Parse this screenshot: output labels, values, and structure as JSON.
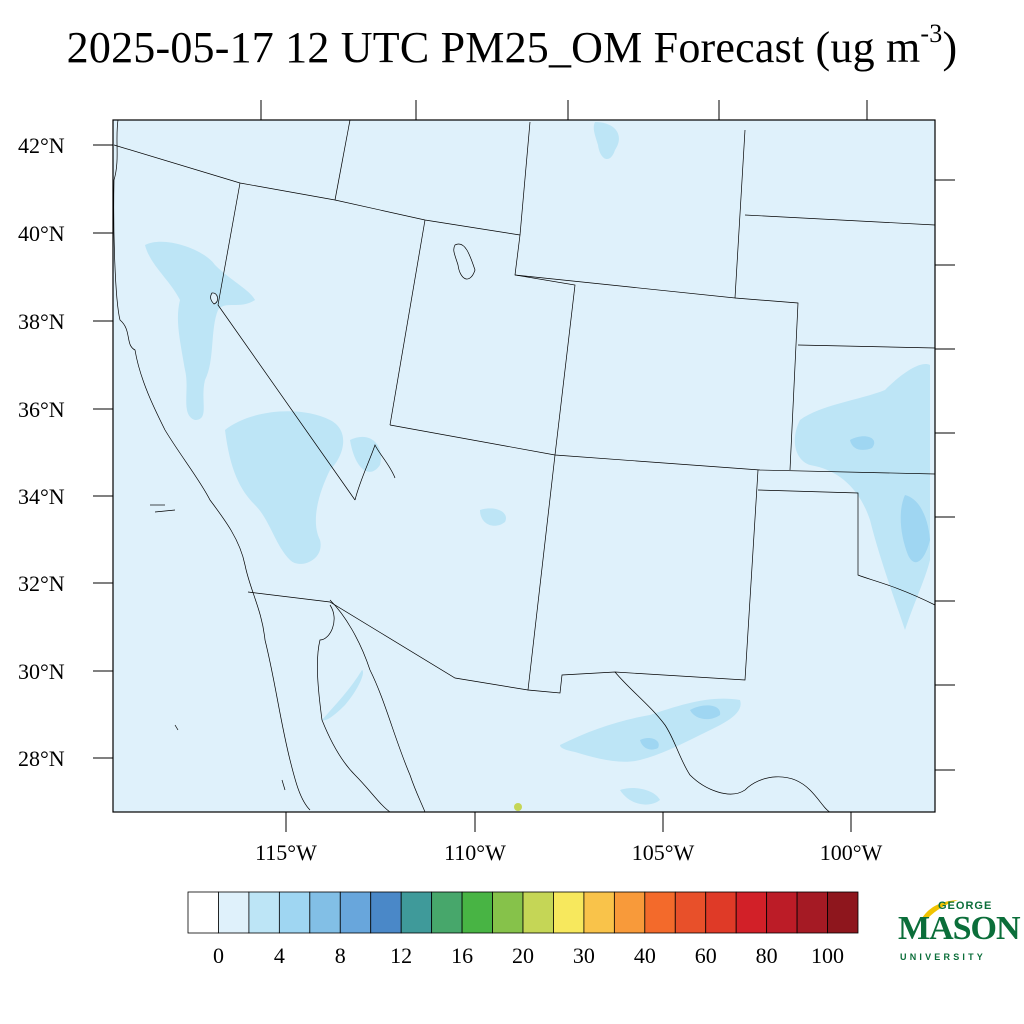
{
  "title": {
    "main": "2025-05-17 12 UTC PM25_OM Forecast (ug m",
    "superscript": "-3",
    "close": ")"
  },
  "map": {
    "lat_labels": [
      "42°N",
      "40°N",
      "38°N",
      "36°N",
      "34°N",
      "32°N",
      "30°N",
      "28°N"
    ],
    "lon_labels": [
      "115°W",
      "110°W",
      "105°W",
      "100°W"
    ],
    "background_color": "#dff1fb"
  },
  "colorbar": {
    "labels": [
      "0",
      "4",
      "8",
      "12",
      "16",
      "20",
      "30",
      "40",
      "60",
      "80",
      "100"
    ],
    "colors": [
      "#ffffff",
      "#dff1fb",
      "#bde5f6",
      "#9fd6f2",
      "#82bfe6",
      "#68a6dc",
      "#4a88c8",
      "#3f9a9a",
      "#47a76b",
      "#48b444",
      "#86c24a",
      "#c5d656",
      "#f7e85d",
      "#f9c34a",
      "#f89a3a",
      "#f36a2b",
      "#e8502a",
      "#df3a27",
      "#d22028",
      "#bc1c27",
      "#a51a24",
      "#8e161d"
    ]
  },
  "logo": {
    "line1": "GEORGE",
    "line2": "MASON",
    "line3": "UNIVERSITY",
    "color": "#0b6e3a",
    "accent": "#f0c300"
  }
}
